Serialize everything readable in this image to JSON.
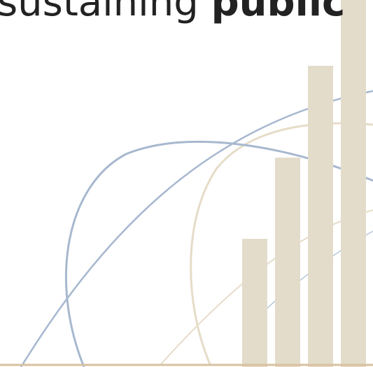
{
  "headline": {
    "regular": "sustaining ",
    "bold": "public"
  },
  "colors": {
    "bar": "#e4dccb",
    "blue_arc": "#a7b8cf",
    "tan_arc": "#e6dcc8",
    "baseline": "#d7c2a0",
    "text": "#222222"
  },
  "decoration": {
    "bar_levels": [
      0.35,
      0.57,
      0.82,
      1.0
    ]
  }
}
